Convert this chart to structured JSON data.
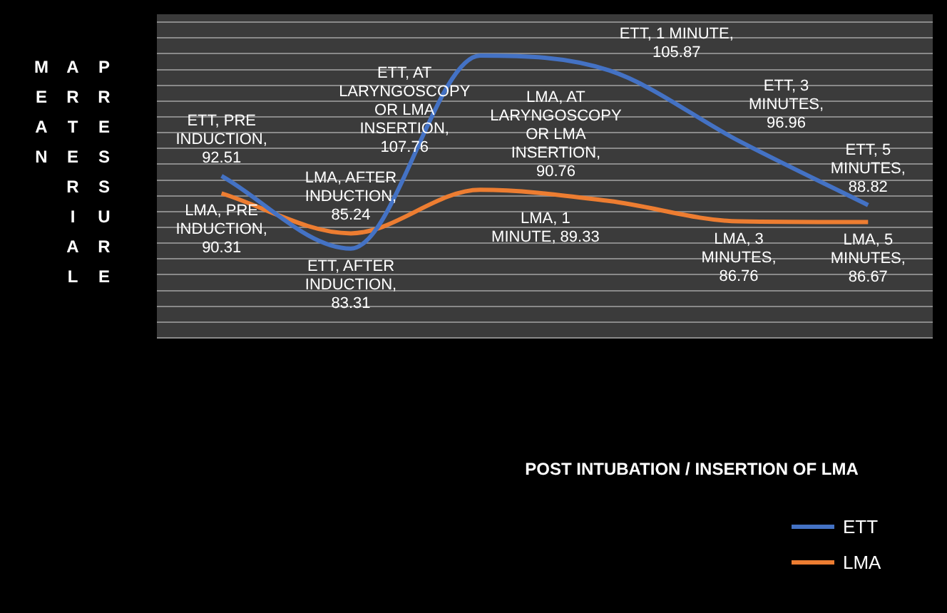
{
  "chart_data": {
    "type": "line",
    "ylabel": "MEAN ARTERIAL PRESSURE",
    "annotations": [
      "POST INTUBATION / INSERTION OF LMA"
    ],
    "categories": [
      null,
      null,
      null,
      null,
      null,
      null
    ],
    "series": [
      {
        "name": "ETT",
        "color": "#4472c4",
        "values": [
          92.51,
          83.31,
          107.76,
          105.87,
          96.96,
          88.82
        ],
        "value_labels": [
          "ETT, PRE INDUCTION, 92.51",
          "ETT, AFTER INDUCTION, 83.31",
          "ETT, AT LARYNGOSCOPY OR LMA INSERTION, 107.76",
          "ETT, 1 MINUTE, 105.87",
          "ETT, 3 MINUTES, 96.96",
          "ETT, 5 MINUTES, 88.82"
        ]
      },
      {
        "name": "LMA",
        "color": "#ed7d31",
        "values": [
          90.31,
          85.24,
          90.76,
          89.33,
          86.76,
          86.67
        ],
        "value_labels": [
          "LMA, PRE INDUCTION, 90.31",
          "LMA, AFTER INDUCTION, 85.24",
          "LMA, AT LARYNGOSCOPY OR LMA INSERTION, 90.76",
          "LMA, 1 MINUTE, 89.33",
          "LMA, 3 MINUTES, 86.76",
          "LMA, 5 MINUTES, 86.67"
        ]
      }
    ],
    "ylim": [
      72,
      113
    ],
    "yticks": [
      {
        "value": 72,
        "label": null
      },
      {
        "value": 74,
        "label": null
      },
      {
        "value": 76,
        "label": null
      },
      {
        "value": 78,
        "label": null
      },
      {
        "value": 80,
        "label": null
      },
      {
        "value": 82,
        "label": null
      },
      {
        "value": 84,
        "label": null
      },
      {
        "value": 86,
        "label": null
      },
      {
        "value": 88,
        "label": null
      },
      {
        "value": 90,
        "label": null
      },
      {
        "value": 92,
        "label": null
      },
      {
        "value": 94,
        "label": null
      },
      {
        "value": 96,
        "label": null
      },
      {
        "value": 98,
        "label": null
      },
      {
        "value": 100,
        "label": null
      },
      {
        "value": 102,
        "label": null
      },
      {
        "value": 104,
        "label": null
      },
      {
        "value": 106,
        "label": null
      },
      {
        "value": 108,
        "label": null
      },
      {
        "value": 110,
        "label": null
      },
      {
        "value": 112,
        "label": null
      }
    ],
    "grid": "y",
    "tick_labels": false,
    "legend": "bottom right",
    "marker": "none",
    "line_style": "solid"
  }
}
